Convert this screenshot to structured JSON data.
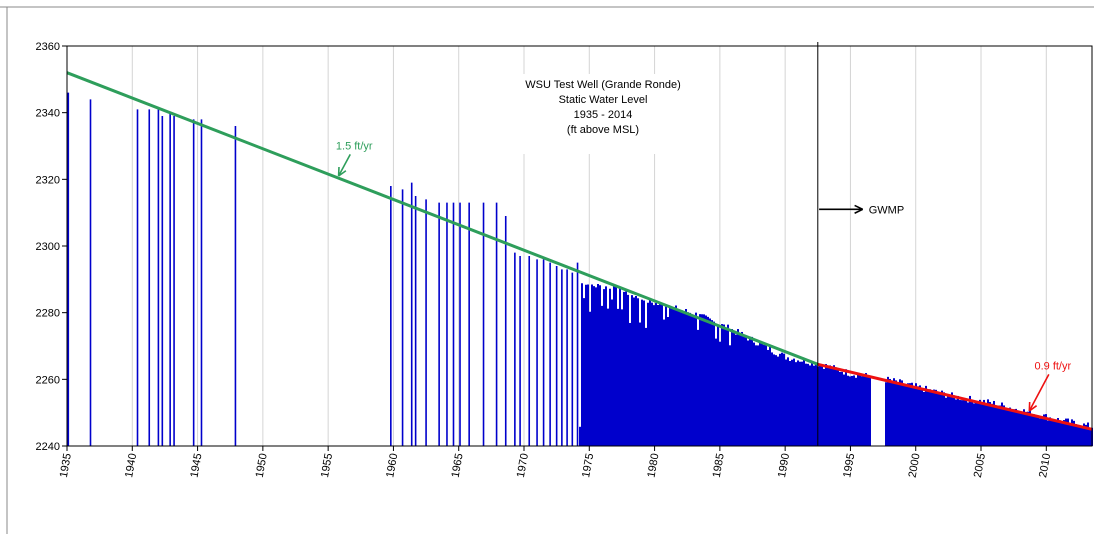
{
  "chart_data": {
    "type": "bar",
    "title_lines": [
      "WSU Test Well (Grande Ronde)",
      "Static Water Level",
      "1935 - 2014",
      "(ft above MSL)"
    ],
    "xlabel": "",
    "ylabel": "",
    "xlim": [
      1935,
      2013.5
    ],
    "ylim": [
      2240,
      2360
    ],
    "yticks": [
      2240,
      2260,
      2280,
      2300,
      2320,
      2340,
      2360
    ],
    "xticks": [
      1935,
      1940,
      1945,
      1950,
      1955,
      1960,
      1965,
      1970,
      1975,
      1980,
      1985,
      1990,
      1995,
      2000,
      2005,
      2010
    ],
    "grid": "vertical",
    "series": [
      {
        "color": "#0000cc",
        "points": [
          [
            1935.1,
            2346
          ],
          [
            1936.8,
            2344
          ],
          [
            1940.4,
            2341
          ],
          [
            1941.3,
            2341
          ],
          [
            1942.0,
            2341
          ],
          [
            1942.3,
            2339
          ],
          [
            1942.9,
            2340
          ],
          [
            1943.2,
            2339
          ],
          [
            1944.7,
            2338
          ],
          [
            1945.3,
            2338
          ],
          [
            1947.9,
            2336
          ],
          [
            1959.8,
            2318
          ],
          [
            1960.7,
            2317
          ],
          [
            1961.4,
            2319
          ],
          [
            1961.7,
            2315
          ],
          [
            1962.5,
            2314
          ],
          [
            1963.5,
            2313
          ],
          [
            1964.1,
            2313
          ],
          [
            1964.6,
            2313
          ],
          [
            1965.1,
            2313
          ],
          [
            1965.8,
            2313
          ],
          [
            1966.9,
            2313
          ],
          [
            1967.9,
            2313
          ],
          [
            1968.6,
            2309
          ],
          [
            1969.3,
            2298
          ],
          [
            1969.7,
            2297
          ],
          [
            1970.4,
            2297
          ],
          [
            1971.0,
            2296
          ],
          [
            1971.5,
            2296
          ],
          [
            1972.0,
            2295
          ],
          [
            1972.5,
            2294
          ],
          [
            1972.9,
            2293
          ],
          [
            1973.3,
            2293
          ],
          [
            1973.7,
            2292
          ],
          [
            1974.1,
            2295
          ]
        ],
        "dense_start": 1974.3,
        "dense_end": 2013.5,
        "dense_anchors": [
          [
            1974.3,
            2289
          ],
          [
            1976,
            2288
          ],
          [
            1978,
            2286
          ],
          [
            1980,
            2283
          ],
          [
            1983,
            2280
          ],
          [
            1986,
            2275
          ],
          [
            1988,
            2271
          ],
          [
            1990,
            2267
          ],
          [
            1992.5,
            2265
          ],
          [
            1995,
            2262
          ],
          [
            1998,
            2260
          ],
          [
            2000,
            2258
          ],
          [
            2003,
            2255
          ],
          [
            2006,
            2253
          ],
          [
            2009,
            2250
          ],
          [
            2011,
            2248
          ],
          [
            2013.5,
            2246
          ]
        ],
        "gaps": [
          [
            1996.6,
            1997.6
          ]
        ]
      }
    ],
    "trend_lines": [
      {
        "label": "1.5 ft/yr",
        "color": "#2e9e5b",
        "from": [
          1935,
          2352
        ],
        "to": [
          1992.5,
          2264.5
        ]
      },
      {
        "label": "0.9 ft/yr",
        "color": "#ee1111",
        "from": [
          1992.5,
          2264.5
        ],
        "to": [
          2013.5,
          2245
        ]
      }
    ],
    "annotations": [
      {
        "text": "1.5 ft/yr",
        "x": 1957,
        "y": 2329,
        "color": "#2e9e5b",
        "arrow_to": [
          1955.8,
          2321
        ]
      },
      {
        "text": "0.9 ft/yr",
        "x": 2010.5,
        "y": 2263,
        "color": "#ee1111",
        "arrow_to": [
          2008.7,
          2250.5
        ]
      },
      {
        "text": "GWMP",
        "x": 1996.4,
        "y": 2311,
        "color": "#000000",
        "arrow_from": [
          1992.6,
          2311
        ]
      }
    ],
    "reference_line": {
      "x": 1992.5,
      "color": "#000000"
    }
  }
}
